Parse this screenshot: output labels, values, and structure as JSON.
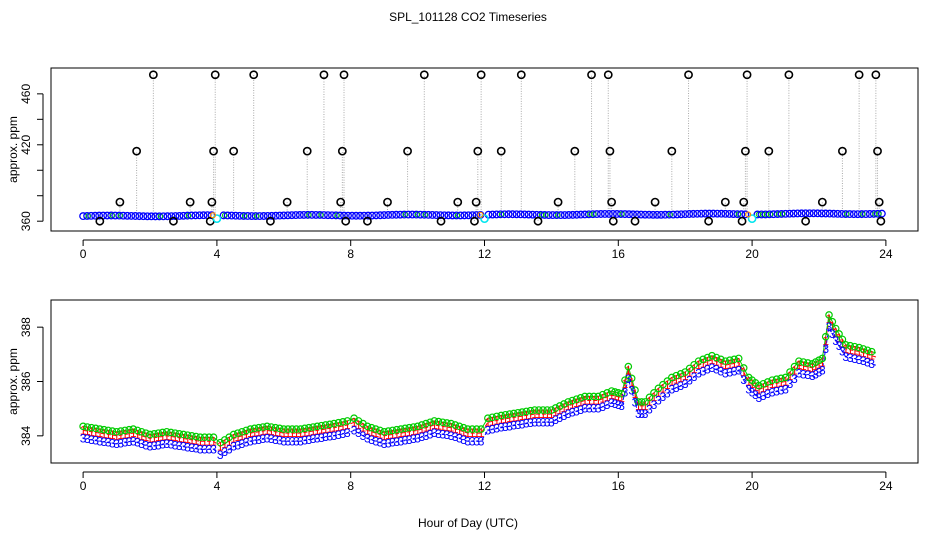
{
  "title": "SPL_101128  CO2 Timeseries",
  "xlabel": "Hour of Day (UTC)",
  "colors": {
    "black": "#000000",
    "blue": "#0000ff",
    "green": "#00cc00",
    "red": "#ff0000",
    "cyan": "#00e5ee",
    "orange": "#ff8c00",
    "connector": "#aaaaaa"
  },
  "chart_data": [
    {
      "id": "top-panel",
      "type": "scatter",
      "ylabel": "approx. ppm",
      "xlim": [
        -0.96,
        24.96
      ],
      "ylim": [
        352.3,
        480.3
      ],
      "xticks": [
        0,
        4,
        8,
        12,
        16,
        20,
        24
      ],
      "yticks": [
        360,
        380,
        400,
        420,
        440,
        460
      ],
      "ytick_labels": [
        "360",
        "",
        "",
        "420",
        "",
        "460"
      ],
      "baseline": {
        "series": "blue",
        "description": "near-continuous baseline ~364-368 ppm"
      },
      "black_circles": [
        {
          "x": 0.5,
          "y": 360
        },
        {
          "x": 1.1,
          "y": 375
        },
        {
          "x": 1.6,
          "y": 415
        },
        {
          "x": 2.1,
          "y": 475
        },
        {
          "x": 2.7,
          "y": 360
        },
        {
          "x": 3.2,
          "y": 375
        },
        {
          "x": 3.8,
          "y": 360
        },
        {
          "x": 3.85,
          "y": 375
        },
        {
          "x": 3.9,
          "y": 415
        },
        {
          "x": 3.95,
          "y": 475
        },
        {
          "x": 4.5,
          "y": 415
        },
        {
          "x": 5.1,
          "y": 475
        },
        {
          "x": 5.6,
          "y": 360
        },
        {
          "x": 6.1,
          "y": 375
        },
        {
          "x": 6.7,
          "y": 415
        },
        {
          "x": 7.2,
          "y": 475
        },
        {
          "x": 7.7,
          "y": 375
        },
        {
          "x": 7.75,
          "y": 415
        },
        {
          "x": 7.8,
          "y": 475
        },
        {
          "x": 7.85,
          "y": 360
        },
        {
          "x": 8.5,
          "y": 360
        },
        {
          "x": 9.1,
          "y": 375
        },
        {
          "x": 9.7,
          "y": 415
        },
        {
          "x": 10.2,
          "y": 475
        },
        {
          "x": 10.7,
          "y": 360
        },
        {
          "x": 11.2,
          "y": 375
        },
        {
          "x": 11.7,
          "y": 360
        },
        {
          "x": 11.75,
          "y": 375
        },
        {
          "x": 11.8,
          "y": 415
        },
        {
          "x": 11.9,
          "y": 475
        },
        {
          "x": 12.5,
          "y": 415
        },
        {
          "x": 13.1,
          "y": 475
        },
        {
          "x": 13.6,
          "y": 360
        },
        {
          "x": 14.2,
          "y": 375
        },
        {
          "x": 14.7,
          "y": 415
        },
        {
          "x": 15.2,
          "y": 475
        },
        {
          "x": 15.7,
          "y": 475
        },
        {
          "x": 15.75,
          "y": 415
        },
        {
          "x": 15.8,
          "y": 375
        },
        {
          "x": 15.85,
          "y": 360
        },
        {
          "x": 16.5,
          "y": 360
        },
        {
          "x": 17.1,
          "y": 375
        },
        {
          "x": 17.6,
          "y": 415
        },
        {
          "x": 18.1,
          "y": 475
        },
        {
          "x": 18.7,
          "y": 360
        },
        {
          "x": 19.2,
          "y": 375
        },
        {
          "x": 19.7,
          "y": 360
        },
        {
          "x": 19.75,
          "y": 375
        },
        {
          "x": 19.8,
          "y": 415
        },
        {
          "x": 19.85,
          "y": 475
        },
        {
          "x": 20.5,
          "y": 415
        },
        {
          "x": 21.1,
          "y": 475
        },
        {
          "x": 21.6,
          "y": 360
        },
        {
          "x": 22.1,
          "y": 375
        },
        {
          "x": 22.7,
          "y": 415
        },
        {
          "x": 23.2,
          "y": 475
        },
        {
          "x": 23.7,
          "y": 475
        },
        {
          "x": 23.75,
          "y": 415
        },
        {
          "x": 23.8,
          "y": 375
        },
        {
          "x": 23.85,
          "y": 360
        }
      ],
      "cyan_circles": [
        {
          "x": 4.0,
          "y": 362
        },
        {
          "x": 12.0,
          "y": 362
        },
        {
          "x": 20.0,
          "y": 362
        }
      ]
    },
    {
      "id": "bottom-panel",
      "type": "line",
      "ylabel": "approx. ppm",
      "xlim": [
        -0.96,
        24.96
      ],
      "ylim": [
        383.0,
        389.0
      ],
      "xticks": [
        0,
        4,
        8,
        12,
        16,
        20,
        24
      ],
      "yticks": [
        384,
        386,
        388
      ],
      "series": [
        {
          "name": "1",
          "symbol": "1",
          "color": "red",
          "offset": 0.1
        },
        {
          "name": "2",
          "symbol": "o",
          "color": "green",
          "offset": 0.25
        },
        {
          "name": "3",
          "symbol": "3",
          "color": "blue",
          "offset": -0.2
        }
      ],
      "x": [
        0,
        0.5,
        1,
        1.5,
        2,
        2.5,
        3,
        3.5,
        3.9,
        4.1,
        4.5,
        5,
        5.5,
        6,
        6.5,
        7,
        7.5,
        7.9,
        8.1,
        8.5,
        9,
        9.5,
        10,
        10.5,
        11,
        11.5,
        11.9,
        12.1,
        12.5,
        13,
        13.5,
        14,
        14.5,
        15,
        15.4,
        15.8,
        16.1,
        16.3,
        16.6,
        16.8,
        17.2,
        17.6,
        18,
        18.4,
        18.8,
        19.2,
        19.6,
        19.9,
        20.2,
        20.6,
        21,
        21.4,
        21.8,
        22.1,
        22.3,
        22.5,
        22.8,
        23.2,
        23.7
      ],
      "base": [
        384.1,
        384.0,
        383.9,
        384.0,
        383.8,
        383.9,
        383.8,
        383.7,
        383.7,
        383.5,
        383.8,
        384.0,
        384.1,
        384.0,
        384.0,
        384.1,
        384.2,
        384.3,
        384.4,
        384.1,
        383.9,
        384.0,
        384.1,
        384.3,
        384.2,
        384.0,
        384.0,
        384.4,
        384.5,
        384.6,
        384.7,
        384.7,
        385.0,
        385.2,
        385.2,
        385.4,
        385.3,
        386.3,
        385.0,
        385.0,
        385.5,
        385.9,
        386.1,
        386.5,
        386.7,
        386.5,
        386.6,
        385.9,
        385.6,
        385.8,
        385.9,
        386.5,
        386.4,
        386.6,
        388.2,
        387.7,
        387.1,
        387.0,
        386.8
      ]
    }
  ]
}
